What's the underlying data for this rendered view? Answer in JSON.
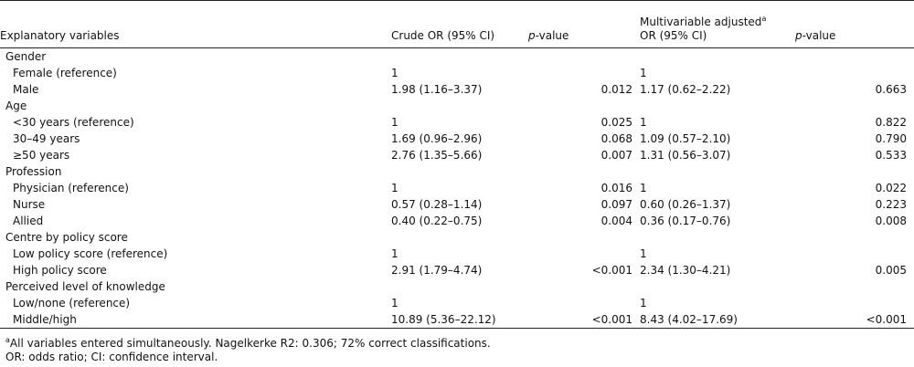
{
  "header": {
    "col_variable": "Explanatory variables",
    "col_crude": "Crude OR (95% CI)",
    "col_p_italic": "p",
    "col_p_rest": "-value",
    "col_adj_line1": "Multivariable adjusted",
    "col_adj_sup": "a",
    "col_adj_line2": "OR (95% CI)",
    "col_p2_italic": "p",
    "col_p2_rest": "-value"
  },
  "rows": [
    {
      "label": "Gender",
      "sub": false,
      "crude": "",
      "p": "",
      "adj": "",
      "p2": ""
    },
    {
      "label": "Female (reference)",
      "sub": true,
      "crude": "1",
      "p": "",
      "adj": "1",
      "p2": ""
    },
    {
      "label": "Male",
      "sub": true,
      "crude": "1.98 (1.16–3.37)",
      "p": "0.012",
      "adj": "1.17 (0.62–2.22)",
      "p2": "0.663"
    },
    {
      "label": "Age",
      "sub": false,
      "crude": "",
      "p": "",
      "adj": "",
      "p2": ""
    },
    {
      "label": "<30 years (reference)",
      "sub": true,
      "crude": "1",
      "p": "0.025",
      "adj": "1",
      "p2": "0.822"
    },
    {
      "label": "30–49 years",
      "sub": true,
      "crude": "1.69 (0.96–2.96)",
      "p": "0.068",
      "adj": "1.09 (0.57–2.10)",
      "p2": "0.790"
    },
    {
      "label": "≥50 years",
      "sub": true,
      "crude": "2.76 (1.35–5.66)",
      "p": "0.007",
      "adj": "1.31 (0.56–3.07)",
      "p2": "0.533"
    },
    {
      "label": "Profession",
      "sub": false,
      "crude": "",
      "p": "",
      "adj": "",
      "p2": ""
    },
    {
      "label": "Physician (reference)",
      "sub": true,
      "crude": "1",
      "p": "0.016",
      "adj": "1",
      "p2": "0.022"
    },
    {
      "label": "Nurse",
      "sub": true,
      "crude": "0.57 (0.28–1.14)",
      "p": "0.097",
      "adj": "0.60 (0.26–1.37)",
      "p2": "0.223"
    },
    {
      "label": "Allied",
      "sub": true,
      "crude": "0.40 (0.22–0.75)",
      "p": "0.004",
      "adj": "0.36 (0.17–0.76)",
      "p2": "0.008"
    },
    {
      "label": "Centre by policy score",
      "sub": false,
      "crude": "",
      "p": "",
      "adj": "",
      "p2": ""
    },
    {
      "label": "Low policy score (reference)",
      "sub": true,
      "crude": "1",
      "p": "",
      "adj": "1",
      "p2": ""
    },
    {
      "label": "High policy score",
      "sub": true,
      "crude": "2.91 (1.79–4.74)",
      "p": "<0.001",
      "adj": "2.34 (1.30–4.21)",
      "p2": "0.005"
    },
    {
      "label": "Perceived level of knowledge",
      "sub": false,
      "crude": "",
      "p": "",
      "adj": "",
      "p2": ""
    },
    {
      "label": "Low/none (reference)",
      "sub": true,
      "crude": "1",
      "p": "",
      "adj": "1",
      "p2": ""
    },
    {
      "label": "Middle/high",
      "sub": true,
      "crude": "10.89 (5.36–22.12)",
      "p": "<0.001",
      "adj": "8.43 (4.02–17.69)",
      "p2": "<0.001"
    }
  ],
  "footnotes": {
    "a_sup": "a",
    "a_text": "All variables entered simultaneously. Nagelkerke R2: 0.306; 72% correct classifications.",
    "abbrev": "OR: odds ratio; CI: confidence interval."
  }
}
